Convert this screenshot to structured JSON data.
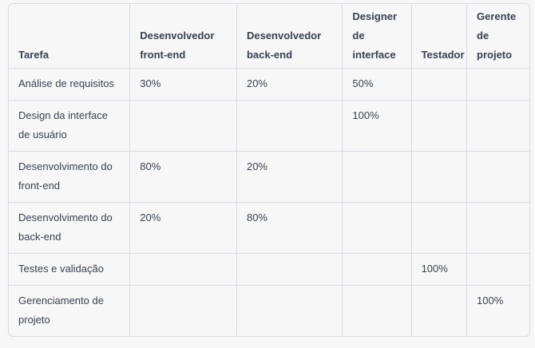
{
  "table": {
    "headers": [
      "Tarefa",
      "Desenvolvedor front-end",
      "Desenvolvedor back-end",
      "Designer de interface",
      "Testador",
      "Gerente de projeto"
    ],
    "rows": [
      [
        "Análise de requisitos",
        "30%",
        "20%",
        "50%",
        "",
        ""
      ],
      [
        "Design da interface de usuário",
        "",
        "",
        "100%",
        "",
        ""
      ],
      [
        "Desenvolvimento do front-end",
        "80%",
        "20%",
        "",
        "",
        ""
      ],
      [
        "Desenvolvimento do back-end",
        "20%",
        "80%",
        "",
        "",
        ""
      ],
      [
        "Testes e validação",
        "",
        "",
        "",
        "100%",
        ""
      ],
      [
        "Gerenciamento de projeto",
        "",
        "",
        "",
        "",
        "100%"
      ]
    ]
  }
}
